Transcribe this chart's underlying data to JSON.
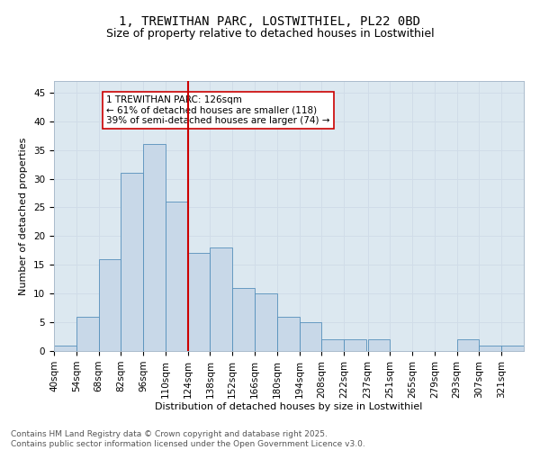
{
  "title_line1": "1, TREWITHAN PARC, LOSTWITHIEL, PL22 0BD",
  "title_line2": "Size of property relative to detached houses in Lostwithiel",
  "xlabel": "Distribution of detached houses by size in Lostwithiel",
  "ylabel": "Number of detached properties",
  "bin_labels": [
    "40sqm",
    "54sqm",
    "68sqm",
    "82sqm",
    "96sqm",
    "110sqm",
    "124sqm",
    "138sqm",
    "152sqm",
    "166sqm",
    "180sqm",
    "194sqm",
    "208sqm",
    "222sqm",
    "237sqm",
    "251sqm",
    "265sqm",
    "279sqm",
    "293sqm",
    "307sqm",
    "321sqm"
  ],
  "bin_edges": [
    40,
    54,
    68,
    82,
    96,
    110,
    124,
    138,
    152,
    166,
    180,
    194,
    208,
    222,
    237,
    251,
    265,
    279,
    293,
    307,
    321
  ],
  "bar_heights": [
    1,
    6,
    16,
    31,
    36,
    26,
    17,
    18,
    11,
    10,
    6,
    5,
    2,
    2,
    2,
    0,
    0,
    0,
    2,
    1,
    1
  ],
  "bar_color": "#c8d8e8",
  "bar_edge_color": "#5590bb",
  "vline_x": 124,
  "vline_color": "#cc0000",
  "annotation_text": "1 TREWITHAN PARC: 126sqm\n← 61% of detached houses are smaller (118)\n39% of semi-detached houses are larger (74) →",
  "annotation_box_color": "#cc0000",
  "ylim": [
    0,
    47
  ],
  "yticks": [
    0,
    5,
    10,
    15,
    20,
    25,
    30,
    35,
    40,
    45
  ],
  "grid_color": "#d0dce8",
  "background_color": "#dce8f0",
  "footer_line1": "Contains HM Land Registry data © Crown copyright and database right 2025.",
  "footer_line2": "Contains public sector information licensed under the Open Government Licence v3.0.",
  "title_fontsize": 10,
  "subtitle_fontsize": 9,
  "axis_label_fontsize": 8,
  "tick_fontsize": 7.5,
  "annotation_fontsize": 7.5,
  "footer_fontsize": 6.5
}
